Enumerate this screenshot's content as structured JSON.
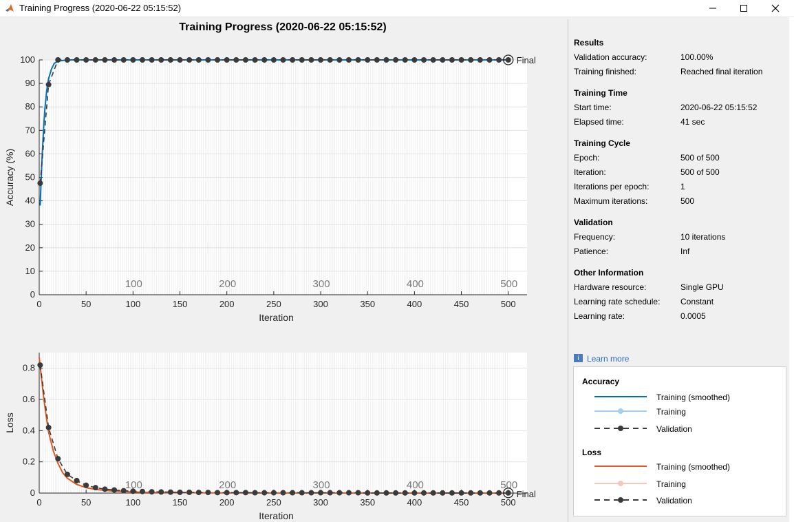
{
  "window": {
    "title": "Training Progress (2020-06-22 05:15:52)",
    "controls": [
      "minimize",
      "maximize",
      "close"
    ]
  },
  "figure_title": "Training Progress (2020-06-22 05:15:52)",
  "colors": {
    "acc_smoothed": "#0072bd",
    "acc_training": "#a2cff0",
    "loss_smoothed": "#e2571e",
    "loss_training": "#f2c9b5",
    "validation": "#3a3a3a",
    "axes_bg": "#ffffff",
    "panel_bg": "#f0f0f0"
  },
  "chart_data": [
    {
      "type": "line",
      "name": "accuracy-plot",
      "xlabel": "Iteration",
      "ylabel": "Accuracy (%)",
      "xlim": [
        0,
        520
      ],
      "ylim": [
        0,
        100
      ],
      "xticks": [
        0,
        50,
        100,
        150,
        200,
        250,
        300,
        350,
        400,
        450,
        500
      ],
      "yticks": [
        0,
        10,
        20,
        30,
        40,
        50,
        60,
        70,
        80,
        90,
        100
      ],
      "epoch_labels": [
        "100",
        "200",
        "300",
        "400",
        "500"
      ],
      "final_label": "Final",
      "series": [
        {
          "name": "Training (smoothed)",
          "x": [
            1,
            2,
            3,
            4,
            5,
            6,
            8,
            10,
            13,
            16,
            20,
            30,
            500
          ],
          "y": [
            38,
            48,
            58,
            66,
            73,
            79,
            87,
            92,
            96,
            98.5,
            99.5,
            100,
            100
          ]
        },
        {
          "name": "Validation",
          "x": [
            1,
            10,
            20,
            30,
            40,
            50,
            60,
            70,
            80,
            90,
            100,
            110,
            120,
            130,
            140,
            150,
            160,
            170,
            180,
            190,
            200,
            210,
            220,
            230,
            240,
            250,
            260,
            270,
            280,
            290,
            300,
            310,
            320,
            330,
            340,
            350,
            360,
            370,
            380,
            390,
            400,
            410,
            420,
            430,
            440,
            450,
            460,
            470,
            480,
            490,
            500
          ],
          "y": [
            47.5,
            89.5,
            100,
            100,
            100,
            100,
            100,
            100,
            100,
            100,
            100,
            100,
            100,
            100,
            100,
            100,
            100,
            100,
            100,
            100,
            100,
            100,
            100,
            100,
            100,
            100,
            100,
            100,
            100,
            100,
            100,
            100,
            100,
            100,
            100,
            100,
            100,
            100,
            100,
            100,
            100,
            100,
            100,
            100,
            100,
            100,
            100,
            100,
            100,
            100,
            100
          ]
        }
      ]
    },
    {
      "type": "line",
      "name": "loss-plot",
      "xlabel": "Iteration",
      "ylabel": "Loss",
      "xlim": [
        0,
        520
      ],
      "ylim": [
        0,
        0.9
      ],
      "xticks": [
        0,
        50,
        100,
        150,
        200,
        250,
        300,
        350,
        400,
        450,
        500
      ],
      "yticks": [
        0,
        0.2,
        0.4,
        0.6,
        0.8
      ],
      "epoch_labels": [
        "100",
        "200",
        "300",
        "400",
        "500"
      ],
      "final_label": "Final",
      "series": [
        {
          "name": "Training (smoothed)",
          "x": [
            0,
            2,
            5,
            8,
            10,
            15,
            20,
            25,
            30,
            40,
            50,
            60,
            70,
            80,
            100,
            120,
            150,
            200,
            300,
            500
          ],
          "y": [
            0.87,
            0.76,
            0.6,
            0.47,
            0.39,
            0.27,
            0.19,
            0.13,
            0.095,
            0.055,
            0.035,
            0.024,
            0.017,
            0.012,
            0.007,
            0.004,
            0.002,
            0.001,
            0.0005,
            0.0002
          ]
        },
        {
          "name": "Validation",
          "x": [
            1,
            10,
            20,
            30,
            40,
            50,
            60,
            70,
            80,
            90,
            100,
            110,
            120,
            130,
            140,
            150,
            160,
            170,
            180,
            190,
            200,
            210,
            220,
            230,
            240,
            250,
            260,
            270,
            280,
            290,
            300,
            310,
            320,
            330,
            340,
            350,
            360,
            370,
            380,
            390,
            400,
            410,
            420,
            430,
            440,
            450,
            460,
            470,
            480,
            490,
            500
          ],
          "y": [
            0.82,
            0.42,
            0.22,
            0.12,
            0.08,
            0.05,
            0.035,
            0.025,
            0.02,
            0.015,
            0.012,
            0.01,
            0.008,
            0.007,
            0.006,
            0.005,
            0.005,
            0.004,
            0.004,
            0.003,
            0.003,
            0.003,
            0.003,
            0.002,
            0.002,
            0.002,
            0.002,
            0.002,
            0.002,
            0.002,
            0.002,
            0.002,
            0.002,
            0.002,
            0.002,
            0.001,
            0.001,
            0.001,
            0.001,
            0.001,
            0.001,
            0.001,
            0.001,
            0.001,
            0.001,
            0.001,
            0.001,
            0.001,
            0.001,
            0.001,
            0.001
          ]
        }
      ]
    }
  ],
  "panel": {
    "results": {
      "title": "Results",
      "rows": [
        {
          "label": "Validation accuracy:",
          "value": "100.00%"
        },
        {
          "label": "Training finished:",
          "value": "Reached final iteration"
        }
      ]
    },
    "training_time": {
      "title": "Training Time",
      "rows": [
        {
          "label": "Start time:",
          "value": "2020-06-22 05:15:52"
        },
        {
          "label": "Elapsed time:",
          "value": "41 sec"
        }
      ]
    },
    "training_cycle": {
      "title": "Training Cycle",
      "rows": [
        {
          "label": "Epoch:",
          "value": "500 of 500"
        },
        {
          "label": "Iteration:",
          "value": "500 of 500"
        },
        {
          "label": "Iterations per epoch:",
          "value": "1"
        },
        {
          "label": "Maximum iterations:",
          "value": "500"
        }
      ]
    },
    "validation": {
      "title": "Validation",
      "rows": [
        {
          "label": "Frequency:",
          "value": "10 iterations"
        },
        {
          "label": "Patience:",
          "value": "Inf"
        }
      ]
    },
    "other_info": {
      "title": "Other Information",
      "rows": [
        {
          "label": "Hardware resource:",
          "value": "Single GPU"
        },
        {
          "label": "Learning rate schedule:",
          "value": "Constant"
        },
        {
          "label": "Learning rate:",
          "value": "0.0005"
        }
      ]
    },
    "learn_more": "Learn more"
  },
  "legend": {
    "accuracy_title": "Accuracy",
    "loss_title": "Loss",
    "items": {
      "training_smoothed": "Training (smoothed)",
      "training": "Training",
      "validation": "Validation"
    }
  }
}
